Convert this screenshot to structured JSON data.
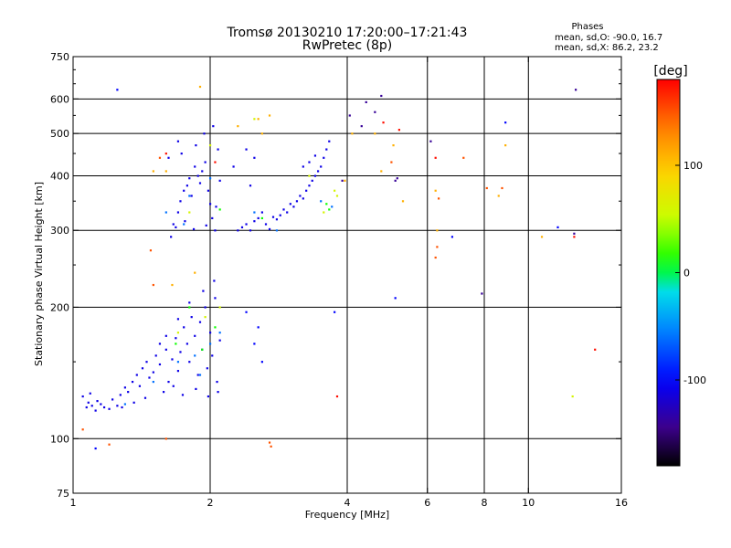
{
  "chart_data": {
    "type": "scatter",
    "title": "Tromsø 20130210 17:20:00–17:21:43",
    "subtitle": "RwPretec (8p)",
    "xlabel": "Frequency [MHz]",
    "ylabel": "Stationary phase Virtual Height [km]",
    "x_scale": "log",
    "y_scale": "log",
    "xlim": [
      1,
      16
    ],
    "ylim": [
      75,
      750
    ],
    "x_ticks": [
      1,
      2,
      4,
      6,
      8,
      10,
      16
    ],
    "x_tick_labels": [
      "1",
      "2",
      "4",
      "6",
      "8",
      "10",
      "16"
    ],
    "x_grid": [
      2,
      4,
      6,
      8,
      10
    ],
    "y_ticks": [
      75,
      100,
      200,
      300,
      400,
      500,
      600,
      750
    ],
    "y_tick_labels": [
      "75",
      "100",
      "200",
      "300",
      "400",
      "500",
      "600",
      "750"
    ],
    "y_grid": [
      100,
      200,
      300,
      400,
      500,
      600
    ],
    "grid": true,
    "info_title": "Phases",
    "info_lines": [
      "mean, sd,O: -90.0, 16.7",
      "mean, sd,X: 86.2, 23.2"
    ],
    "colorbar": {
      "label": "[deg]",
      "range": [
        -180,
        180
      ],
      "ticks": [
        100,
        0,
        -100
      ],
      "tick_labels": [
        "100",
        "0",
        "-100"
      ]
    },
    "point_color_encoding": "phase [deg]",
    "series": [
      {
        "phase": -110,
        "points": [
          [
            1.05,
            125
          ],
          [
            1.07,
            118
          ],
          [
            1.08,
            121
          ],
          [
            1.09,
            127
          ],
          [
            1.1,
            119
          ],
          [
            1.12,
            116
          ],
          [
            1.13,
            122
          ],
          [
            1.15,
            120
          ],
          [
            1.17,
            118
          ],
          [
            1.2,
            117
          ],
          [
            1.22,
            123
          ],
          [
            1.25,
            119
          ],
          [
            1.27,
            126
          ],
          [
            1.3,
            131
          ],
          [
            1.32,
            128
          ],
          [
            1.35,
            135
          ],
          [
            1.38,
            140
          ],
          [
            1.4,
            132
          ],
          [
            1.42,
            145
          ],
          [
            1.45,
            150
          ],
          [
            1.47,
            138
          ],
          [
            1.5,
            142
          ],
          [
            1.52,
            155
          ],
          [
            1.55,
            148
          ],
          [
            1.6,
            160
          ],
          [
            1.62,
            135
          ],
          [
            1.65,
            152
          ],
          [
            1.68,
            170
          ],
          [
            1.7,
            143
          ],
          [
            1.72,
            158
          ],
          [
            1.75,
            180
          ],
          [
            1.78,
            165
          ],
          [
            1.8,
            150
          ],
          [
            1.82,
            190
          ],
          [
            1.85,
            172
          ],
          [
            1.88,
            140
          ],
          [
            1.9,
            185
          ],
          [
            1.92,
            160
          ],
          [
            1.95,
            200
          ],
          [
            1.97,
            145
          ],
          [
            2.0,
            175
          ],
          [
            2.02,
            155
          ],
          [
            2.05,
            210
          ],
          [
            2.07,
            135
          ],
          [
            2.1,
            168
          ],
          [
            1.58,
            128
          ],
          [
            1.66,
            132
          ],
          [
            1.74,
            126
          ],
          [
            1.86,
            130
          ],
          [
            1.98,
            125
          ],
          [
            2.08,
            128
          ],
          [
            1.44,
            124
          ],
          [
            1.36,
            121
          ],
          [
            1.28,
            118
          ],
          [
            1.93,
            218
          ],
          [
            2.04,
            230
          ],
          [
            1.6,
            172
          ],
          [
            1.7,
            188
          ],
          [
            1.8,
            205
          ],
          [
            1.55,
            165
          ],
          [
            1.64,
            290
          ],
          [
            1.66,
            310
          ],
          [
            1.7,
            330
          ],
          [
            1.72,
            350
          ],
          [
            1.75,
            370
          ],
          [
            1.78,
            380
          ],
          [
            1.8,
            395
          ],
          [
            1.82,
            360
          ],
          [
            1.85,
            420
          ],
          [
            1.88,
            400
          ],
          [
            1.9,
            385
          ],
          [
            1.92,
            410
          ],
          [
            1.95,
            430
          ],
          [
            1.98,
            370
          ],
          [
            2.0,
            345
          ],
          [
            2.02,
            320
          ],
          [
            2.05,
            300
          ],
          [
            2.08,
            460
          ],
          [
            1.68,
            305
          ],
          [
            1.76,
            315
          ],
          [
            1.84,
            302
          ],
          [
            1.96,
            308
          ],
          [
            2.06,
            340
          ],
          [
            1.73,
            450
          ],
          [
            1.86,
            470
          ],
          [
            1.94,
            500
          ],
          [
            2.03,
            520
          ],
          [
            1.62,
            440
          ],
          [
            1.7,
            480
          ],
          [
            2.1,
            390
          ],
          [
            2.3,
            300
          ],
          [
            2.35,
            305
          ],
          [
            2.4,
            310
          ],
          [
            2.45,
            300
          ],
          [
            2.5,
            315
          ],
          [
            2.55,
            320
          ],
          [
            2.6,
            330
          ],
          [
            2.65,
            310
          ],
          [
            2.7,
            302
          ],
          [
            2.75,
            322
          ],
          [
            2.8,
            318
          ],
          [
            2.85,
            325
          ],
          [
            2.9,
            335
          ],
          [
            2.95,
            330
          ],
          [
            3.0,
            345
          ],
          [
            3.05,
            340
          ],
          [
            3.1,
            350
          ],
          [
            3.15,
            360
          ],
          [
            3.2,
            355
          ],
          [
            3.25,
            370
          ],
          [
            3.3,
            380
          ],
          [
            3.35,
            390
          ],
          [
            3.4,
            400
          ],
          [
            3.45,
            410
          ],
          [
            3.5,
            420
          ],
          [
            3.55,
            440
          ],
          [
            3.6,
            460
          ],
          [
            3.65,
            480
          ],
          [
            3.2,
            420
          ],
          [
            3.3,
            430
          ],
          [
            3.4,
            445
          ],
          [
            2.4,
            460
          ],
          [
            2.5,
            440
          ],
          [
            2.25,
            420
          ],
          [
            2.45,
            380
          ]
        ]
      },
      {
        "phase": -60,
        "points": [
          [
            1.3,
            120
          ],
          [
            1.5,
            135
          ],
          [
            1.7,
            150
          ],
          [
            1.85,
            155
          ],
          [
            2.0,
            165
          ],
          [
            1.6,
            330
          ],
          [
            1.8,
            360
          ],
          [
            2.0,
            395
          ],
          [
            2.5,
            330
          ],
          [
            2.8,
            300
          ],
          [
            3.5,
            350
          ],
          [
            3.7,
            340
          ],
          [
            1.9,
            140
          ],
          [
            1.75,
            310
          ],
          [
            2.1,
            175
          ]
        ]
      },
      {
        "phase": 10,
        "points": [
          [
            1.92,
            160
          ],
          [
            2.05,
            180
          ],
          [
            1.8,
            200
          ],
          [
            2.6,
            320
          ],
          [
            3.6,
            345
          ],
          [
            3.65,
            335
          ],
          [
            2.1,
            335
          ],
          [
            1.68,
            165
          ]
        ]
      },
      {
        "phase": 60,
        "points": [
          [
            1.7,
            175
          ],
          [
            1.95,
            190
          ],
          [
            2.1,
            200
          ],
          [
            2.5,
            540
          ],
          [
            3.8,
            360
          ],
          [
            3.75,
            370
          ],
          [
            3.55,
            330
          ],
          [
            1.8,
            330
          ],
          [
            2.0,
            470
          ],
          [
            3.3,
            400
          ],
          [
            12.5,
            125
          ]
        ]
      },
      {
        "phase": 110,
        "points": [
          [
            1.9,
            640
          ],
          [
            2.7,
            550
          ],
          [
            2.55,
            540
          ],
          [
            2.6,
            500
          ],
          [
            4.1,
            500
          ],
          [
            4.6,
            500
          ],
          [
            4.75,
            410
          ],
          [
            5.05,
            470
          ],
          [
            5.3,
            350
          ],
          [
            6.25,
            370
          ],
          [
            6.3,
            300
          ],
          [
            8.6,
            360
          ],
          [
            8.9,
            470
          ],
          [
            10.7,
            290
          ],
          [
            1.5,
            410
          ],
          [
            1.65,
            225
          ],
          [
            1.85,
            240
          ],
          [
            3.95,
            390
          ],
          [
            1.6,
            410
          ],
          [
            2.3,
            520
          ]
        ]
      },
      {
        "phase": 150,
        "points": [
          [
            6.25,
            260
          ],
          [
            6.3,
            275
          ],
          [
            7.2,
            440
          ],
          [
            8.75,
            375
          ],
          [
            1.48,
            270
          ],
          [
            1.5,
            225
          ],
          [
            1.2,
            97
          ],
          [
            1.6,
            100
          ],
          [
            2.7,
            98
          ],
          [
            2.72,
            96
          ],
          [
            1.05,
            105
          ],
          [
            1.55,
            440
          ],
          [
            5.0,
            430
          ],
          [
            6.35,
            355
          ],
          [
            8.1,
            375
          ]
        ]
      },
      {
        "phase": 175,
        "points": [
          [
            3.8,
            125
          ],
          [
            4.8,
            530
          ],
          [
            6.25,
            440
          ],
          [
            1.6,
            450
          ],
          [
            2.05,
            430
          ],
          [
            14,
            160
          ],
          [
            12.6,
            290
          ],
          [
            5.2,
            510
          ]
        ]
      },
      {
        "phase": -140,
        "points": [
          [
            4.05,
            550
          ],
          [
            4.4,
            590
          ],
          [
            4.6,
            560
          ],
          [
            4.75,
            610
          ],
          [
            5.15,
            395
          ],
          [
            6.1,
            480
          ],
          [
            7.9,
            215
          ],
          [
            12.6,
            295
          ],
          [
            12.7,
            630
          ],
          [
            4.3,
            520
          ],
          [
            3.9,
            390
          ],
          [
            5.1,
            390
          ]
        ]
      },
      {
        "phase": -100,
        "points": [
          [
            1.25,
            630
          ],
          [
            5.1,
            210
          ],
          [
            3.75,
            195
          ],
          [
            6.8,
            290
          ],
          [
            11.6,
            305
          ],
          [
            8.9,
            530
          ],
          [
            1.12,
            95
          ],
          [
            2.5,
            165
          ],
          [
            2.6,
            150
          ],
          [
            2.4,
            195
          ],
          [
            2.55,
            180
          ]
        ]
      }
    ]
  }
}
